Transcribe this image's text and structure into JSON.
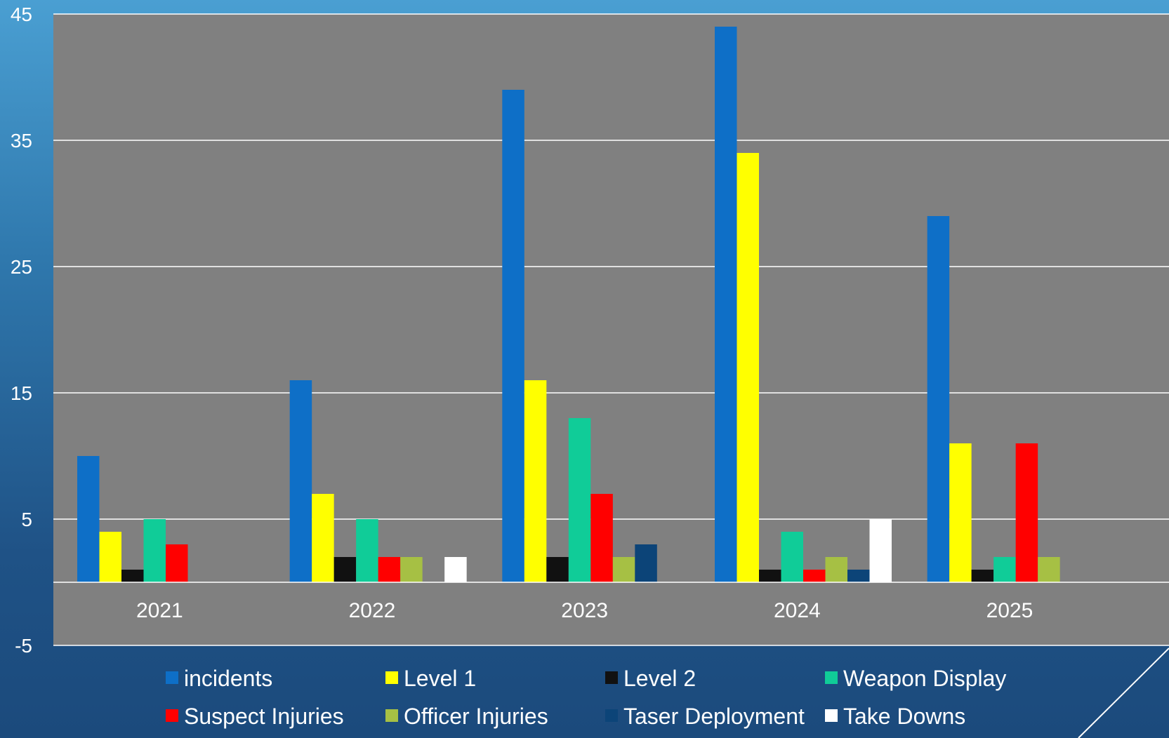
{
  "chart_data": {
    "type": "bar",
    "title": "",
    "xlabel": "",
    "ylabel": "",
    "categories": [
      "2021",
      "2022",
      "2023",
      "2024",
      "2025"
    ],
    "ylim": [
      -5,
      45
    ],
    "yticks": [
      "45",
      "35",
      "25",
      "15",
      "5",
      "-5"
    ],
    "grid": true,
    "legend_position": "bottom",
    "colors": {
      "plot_background": "#808080",
      "gridline": "#ffffff"
    },
    "series": [
      {
        "name": "incidents",
        "color": "#0e6fc7",
        "values": [
          10,
          16,
          39,
          44,
          29
        ]
      },
      {
        "name": "Level 1",
        "color": "#ffff00",
        "values": [
          4,
          7,
          16,
          34,
          11
        ]
      },
      {
        "name": "Level 2",
        "color": "#111111",
        "values": [
          1,
          2,
          2,
          1,
          1
        ]
      },
      {
        "name": "Weapon Display",
        "color": "#10cc98",
        "values": [
          5,
          5,
          13,
          4,
          2
        ]
      },
      {
        "name": "Suspect Injuries",
        "color": "#ff0000",
        "values": [
          3,
          2,
          7,
          1,
          11
        ]
      },
      {
        "name": "Officer Injuries",
        "color": "#a6c044",
        "values": [
          0,
          2,
          2,
          2,
          2
        ]
      },
      {
        "name": "Taser Deployment",
        "color": "#0c4478",
        "values": [
          0,
          0,
          3,
          1,
          0
        ]
      },
      {
        "name": "Take Downs",
        "color": "#ffffff",
        "values": [
          0,
          2,
          0,
          5,
          0
        ]
      }
    ]
  }
}
